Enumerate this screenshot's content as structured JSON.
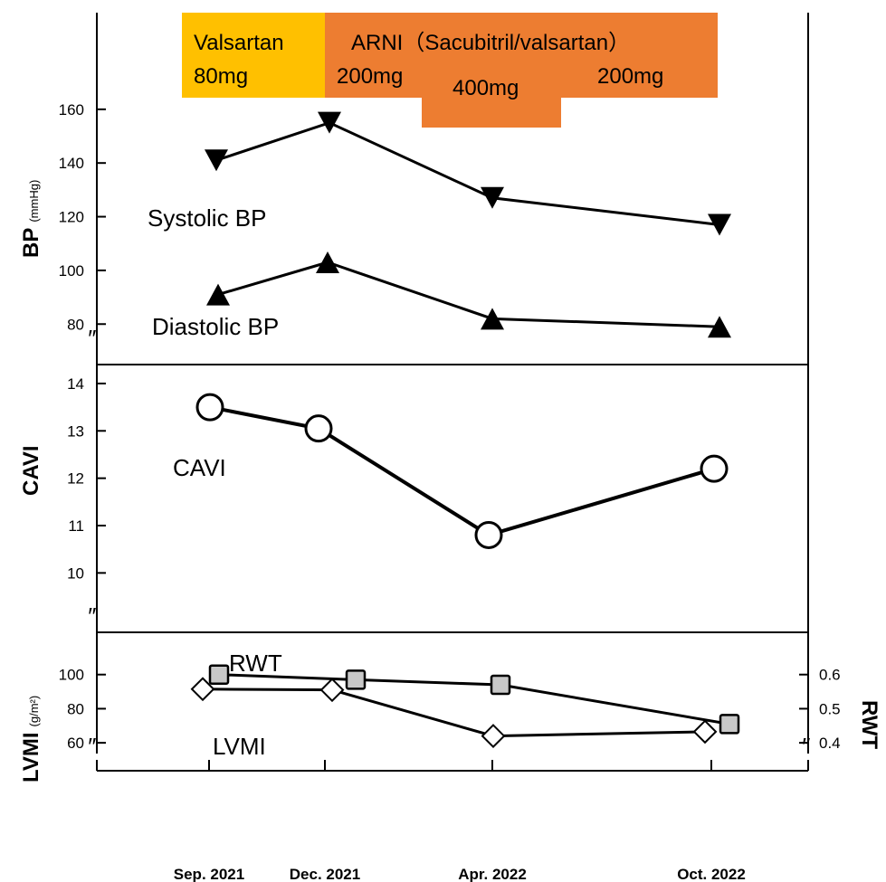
{
  "chart_data": [
    {
      "type": "line",
      "title": "",
      "ylabel": "BP",
      "yunit": "(mmHg)",
      "ylim": [
        72,
        165
      ],
      "yticks": [
        80,
        100,
        120,
        140,
        160
      ],
      "x": [
        "Sep. 2021",
        "Dec. 2021",
        "Apr. 2022",
        "Oct. 2022"
      ],
      "series": [
        {
          "name": "Systolic BP",
          "values": [
            141,
            155,
            127,
            117
          ],
          "marker": "triangle-down"
        },
        {
          "name": "Diastolic BP",
          "values": [
            91,
            103,
            82,
            79
          ],
          "marker": "triangle-up"
        }
      ],
      "treatment": [
        {
          "drug": "Valsartan",
          "dose": "80mg",
          "color": "#FFC000",
          "from": "start",
          "to": "Dec. 2021"
        },
        {
          "drug": "ARNI（Sacubitril/valsartan）",
          "dose": "200mg",
          "color": "#ED7D31",
          "from": "Dec. 2021",
          "to": "Feb. 2022"
        },
        {
          "drug": "",
          "dose": "400mg",
          "color": "#ED7D31",
          "from": "Feb. 2022",
          "to": "Jun. 2022"
        },
        {
          "drug": "",
          "dose": "200mg",
          "color": "#ED7D31",
          "from": "Jun. 2022",
          "to": "Oct. 2022"
        }
      ]
    },
    {
      "type": "line",
      "title": "",
      "ylabel": "CAVI",
      "ylim": [
        9.3,
        14.4
      ],
      "yticks": [
        10,
        11,
        12,
        13,
        14
      ],
      "x": [
        "Sep. 2021",
        "Dec. 2021",
        "Apr. 2022",
        "Oct. 2022"
      ],
      "series": [
        {
          "name": "CAVI",
          "values": [
            13.5,
            13.05,
            10.8,
            12.2
          ],
          "marker": "circle-open"
        }
      ]
    },
    {
      "type": "line",
      "title": "",
      "ylabel": "LVMI",
      "yunit": "(g/m²)",
      "ylim": [
        50,
        120
      ],
      "yticks": [
        60,
        80,
        100
      ],
      "y2label": "RWT",
      "y2ticks": [
        0.4,
        0.5,
        0.6
      ],
      "x": [
        "Sep. 2021",
        "Dec. 2021",
        "Apr. 2022",
        "Oct. 2022"
      ],
      "series": [
        {
          "name": "LVMI",
          "axis": "left",
          "values": [
            91.5,
            91,
            64,
            66.5
          ],
          "marker": "diamond-open"
        },
        {
          "name": "RWT",
          "axis": "right",
          "values": [
            0.6,
            0.585,
            0.57,
            0.455
          ],
          "marker": "square-gray"
        }
      ]
    }
  ],
  "axis_break_mark": "″"
}
